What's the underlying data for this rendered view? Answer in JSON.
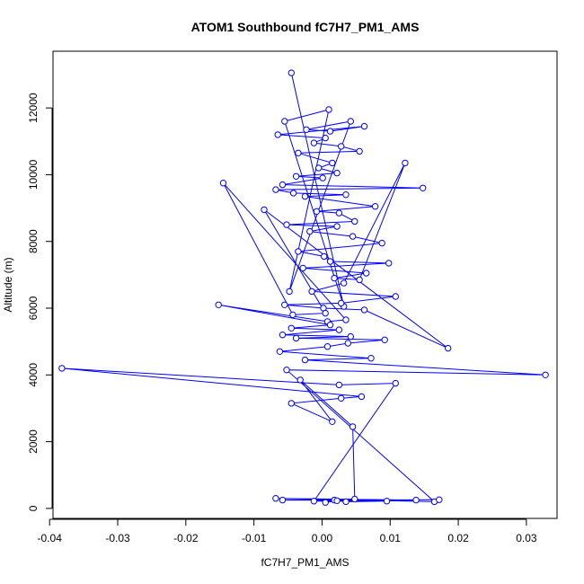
{
  "chart_data": {
    "type": "scatter",
    "title": "ATOM1 Southbound fC7H7_PM1_AMS",
    "xlabel": "fC7H7_PM1_AMS",
    "ylabel": "Altitude (m)",
    "xlim": [
      -0.0395,
      0.0345
    ],
    "ylim": [
      -300,
      13700
    ],
    "xticks": [
      -0.04,
      -0.03,
      -0.02,
      -0.01,
      0.0,
      0.01,
      0.02,
      0.03
    ],
    "xtick_labels": [
      "-0.04",
      "-0.03",
      "-0.02",
      "-0.01",
      "0.00",
      "0.01",
      "0.02",
      "0.03"
    ],
    "yticks": [
      0,
      2000,
      4000,
      6000,
      8000,
      10000,
      12000
    ],
    "ytick_labels": [
      "0",
      "2000",
      "4000",
      "6000",
      "8000",
      "10000",
      "12000"
    ],
    "grid": false,
    "legend": "none",
    "color": "#0000ff",
    "marker": "open-circle",
    "connected": true,
    "series": [
      {
        "x": [
          -0.0045,
          0.0032,
          -0.0055,
          0.001,
          -0.0048,
          0.0042,
          -0.0023,
          0.0012,
          0.0062,
          -0.0065,
          0.0005,
          -0.0012,
          0.0028,
          0.0055,
          -0.0035,
          0.0015,
          -0.0005,
          0.0022,
          -0.0038,
          0.0001,
          -0.0058,
          0.0148,
          -0.0068,
          -0.0042,
          0.0035,
          -0.0025,
          0.0078,
          -0.0008,
          0.0025,
          0.0048,
          -0.0052,
          0.0022,
          -0.0018,
          0.0045,
          0.0088,
          -0.0035,
          0.0003,
          0.0012,
          0.0098,
          -0.0028,
          0.0065,
          0.0018,
          0.0055,
          0.0122,
          0.0032,
          -0.0015,
          0.0108,
          0.0028,
          -0.0055,
          0.0002,
          0.0062,
          0.0185,
          -0.0085,
          0.0005,
          -0.0043,
          -0.0145,
          0.0035,
          0.0008,
          -0.0152,
          0.0012,
          -0.0045,
          0.0025,
          -0.0058,
          0.0042,
          -0.0038,
          0.0092,
          0.0038,
          0.0008,
          -0.0062,
          0.0072,
          -0.0025,
          0.0328,
          -0.0052,
          0.0165,
          -0.0068,
          0.0138,
          -0.0012,
          0.0108,
          0.0025,
          -0.0382,
          0.0058,
          0.0028,
          -0.0045,
          0.0015,
          -0.0032,
          0.0045,
          0.0048,
          -0.0058,
          0.0172,
          0.0018,
          0.0095,
          0.0035,
          0.0022,
          0.0005
        ],
        "y": [
          13050,
          6050,
          11600,
          11950,
          6500,
          11600,
          11350,
          11300,
          11450,
          11200,
          11100,
          10950,
          10850,
          10700,
          10650,
          10350,
          10200,
          10050,
          9950,
          9900,
          9700,
          9600,
          9550,
          9450,
          9400,
          9350,
          9050,
          8900,
          8850,
          8600,
          8500,
          8450,
          8300,
          8150,
          7950,
          7700,
          7550,
          7400,
          7350,
          7200,
          7050,
          6900,
          6850,
          10350,
          6750,
          6500,
          6350,
          6150,
          6100,
          6000,
          5950,
          4800,
          8950,
          5850,
          5800,
          9750,
          5650,
          5600,
          6100,
          5500,
          5400,
          5350,
          5200,
          5150,
          5100,
          5050,
          4950,
          4850,
          4700,
          4500,
          4450,
          4000,
          4150,
          200,
          300,
          250,
          220,
          3750,
          3700,
          4200,
          3350,
          3300,
          3150,
          2600,
          3850,
          2450,
          280,
          250,
          260,
          250,
          220,
          200,
          230,
          180
        ]
      }
    ]
  }
}
